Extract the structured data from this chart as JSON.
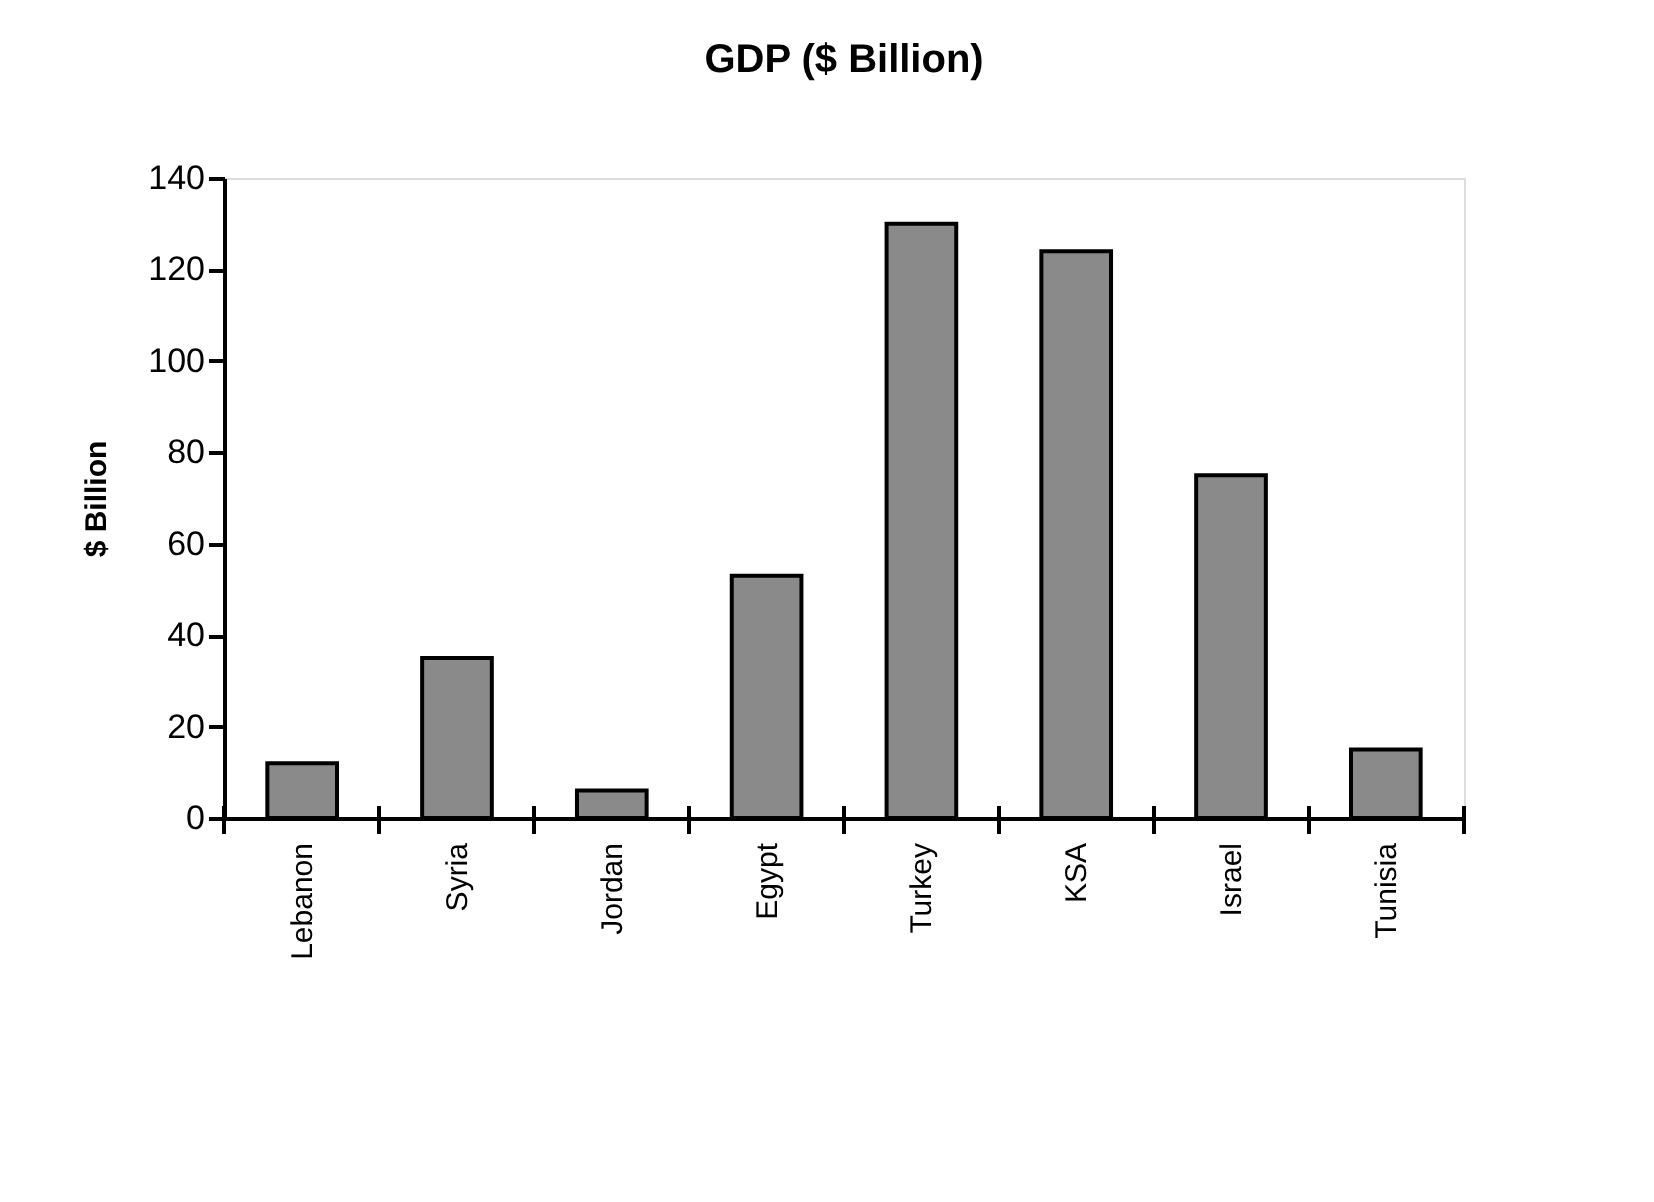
{
  "chart_data": {
    "type": "bar",
    "title": "GDP ($ Billion)",
    "ylabel": "$ Billion",
    "categories": [
      "Lebanon",
      "Syria",
      "Jordan",
      "Egypt",
      "Turkey",
      "KSA",
      "Israel",
      "Tunisia"
    ],
    "values": [
      12,
      35,
      6,
      53,
      130,
      124,
      75,
      15
    ],
    "color": "#8a8a8a",
    "ylim": [
      0,
      140
    ],
    "yticks": [
      0,
      20,
      40,
      60,
      80,
      100,
      120,
      140
    ],
    "grid": false
  }
}
